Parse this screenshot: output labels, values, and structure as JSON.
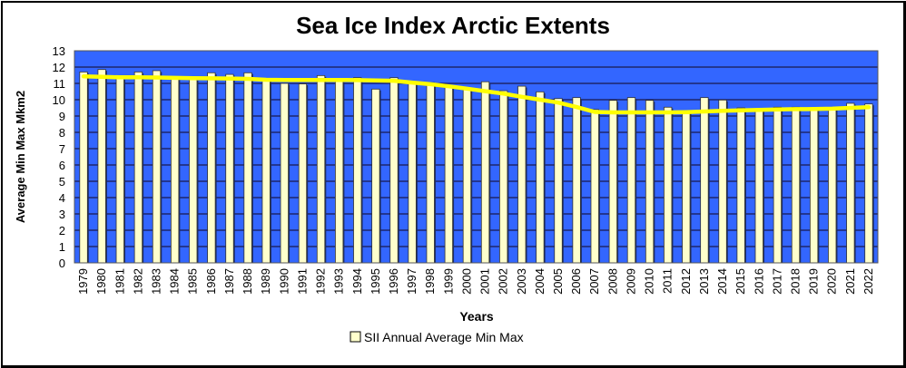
{
  "chart_data": {
    "type": "bar",
    "title": "Sea Ice Index Arctic Extents",
    "xlabel": "Years",
    "ylabel": "Average Min Max  Mkm2",
    "ylim": [
      0,
      13
    ],
    "yticks": [
      "0",
      "1",
      "2",
      "3",
      "4",
      "5",
      "6",
      "7",
      "8",
      "9",
      "10",
      "11",
      "12",
      "13"
    ],
    "grid": true,
    "legend_position": "bottom",
    "colors": {
      "plot_background": "#3366ff",
      "bar_fill": "#ffffcc",
      "bar_stroke": "#333333",
      "trend_line": "#ffff00",
      "gridline": "#1a1a4d"
    },
    "categories": [
      "1979",
      "1980",
      "1981",
      "1982",
      "1983",
      "1984",
      "1985",
      "1986",
      "1987",
      "1988",
      "1989",
      "1990",
      "1991",
      "1992",
      "1993",
      "1994",
      "1995",
      "1996",
      "1997",
      "1998",
      "1999",
      "2000",
      "2001",
      "2002",
      "2003",
      "2004",
      "2005",
      "2006",
      "2007",
      "2008",
      "2009",
      "2010",
      "2011",
      "2012",
      "2013",
      "2014",
      "2015",
      "2016",
      "2017",
      "2018",
      "2019",
      "2020",
      "2021",
      "2022"
    ],
    "series": [
      {
        "name": "SII Annual Average Min Max",
        "type": "bar",
        "values": [
          11.7,
          11.85,
          11.3,
          11.7,
          11.78,
          11.3,
          11.25,
          11.65,
          11.55,
          11.65,
          11.2,
          11.0,
          10.97,
          11.48,
          11.15,
          11.35,
          10.65,
          11.35,
          11.1,
          11.05,
          10.78,
          10.7,
          11.1,
          10.55,
          10.83,
          10.48,
          10.07,
          10.13,
          9.4,
          9.96,
          10.13,
          9.96,
          9.54,
          9.3,
          10.13,
          9.98,
          9.5,
          9.42,
          9.54,
          9.54,
          9.4,
          9.42,
          9.78,
          9.74
        ]
      },
      {
        "name": "Trend",
        "type": "line",
        "values": [
          11.43,
          11.4,
          11.37,
          11.37,
          11.36,
          11.34,
          11.32,
          11.31,
          11.3,
          11.28,
          11.22,
          11.21,
          11.21,
          11.21,
          11.21,
          11.2,
          11.18,
          11.16,
          11.05,
          10.95,
          10.82,
          10.68,
          10.52,
          10.37,
          10.18,
          10.0,
          9.82,
          9.55,
          9.25,
          9.22,
          9.22,
          9.22,
          9.22,
          9.24,
          9.28,
          9.32,
          9.35,
          9.38,
          9.4,
          9.42,
          9.43,
          9.45,
          9.5,
          9.54
        ]
      }
    ],
    "legend": [
      {
        "label": "SII Annual Average Min Max",
        "swatch": "bar"
      }
    ]
  }
}
